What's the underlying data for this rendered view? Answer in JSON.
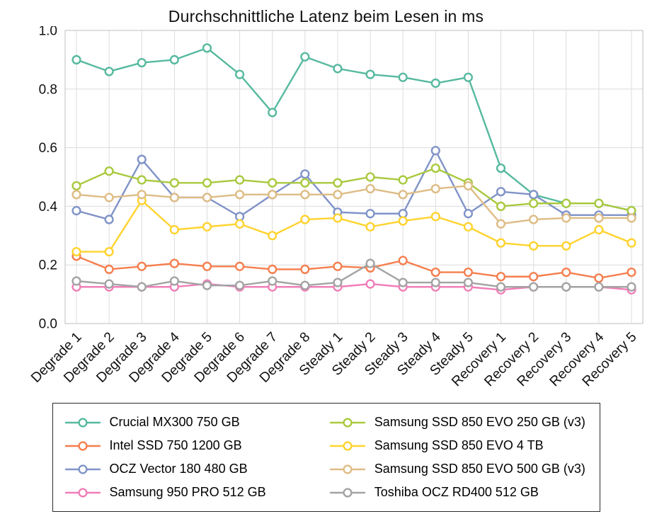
{
  "chart_data": {
    "type": "line",
    "title": "Durchschnittliche Latenz beim Lesen in ms",
    "xlabel": "",
    "ylabel": "",
    "ylim": [
      0.0,
      1.0
    ],
    "yticks": [
      0.0,
      0.2,
      0.4,
      0.6,
      0.8,
      1.0
    ],
    "ytick_labels": [
      "0.0",
      "0.2",
      "0.4",
      "0.6",
      "0.8",
      "1.0"
    ],
    "grid": true,
    "legend_position": "bottom",
    "categories": [
      "Degrade 1",
      "Degrade 2",
      "Degrade 3",
      "Degrade 4",
      "Degrade 5",
      "Degrade 6",
      "Degrade 7",
      "Degrade 8",
      "Steady 1",
      "Steady 2",
      "Steady 3",
      "Steady 4",
      "Steady 5",
      "Recovery 1",
      "Recovery 2",
      "Recovery 3",
      "Recovery 4",
      "Recovery 5"
    ],
    "series": [
      {
        "name": "Crucial MX300 750 GB",
        "color": "#56b99f",
        "values": [
          0.9,
          0.86,
          0.89,
          0.9,
          0.94,
          0.85,
          0.72,
          0.91,
          0.87,
          0.85,
          0.84,
          0.82,
          0.84,
          0.53,
          0.44,
          0.41,
          0.41,
          0.385
        ]
      },
      {
        "name": "Intel SSD 750 1200 GB",
        "color": "#f57e4e",
        "values": [
          0.23,
          0.185,
          0.195,
          0.205,
          0.195,
          0.195,
          0.185,
          0.185,
          0.195,
          0.19,
          0.215,
          0.175,
          0.175,
          0.16,
          0.16,
          0.175,
          0.155,
          0.175
        ]
      },
      {
        "name": "OCZ Vector 180 480 GB",
        "color": "#8093c8",
        "values": [
          0.385,
          0.355,
          0.56,
          0.43,
          0.43,
          0.365,
          0.44,
          0.51,
          0.38,
          0.375,
          0.375,
          0.59,
          0.375,
          0.45,
          0.44,
          0.37,
          0.37,
          0.37
        ]
      },
      {
        "name": "Samsung 950 PRO 512 GB",
        "color": "#f07eb8",
        "values": [
          0.125,
          0.125,
          0.125,
          0.125,
          0.135,
          0.125,
          0.125,
          0.125,
          0.125,
          0.135,
          0.125,
          0.125,
          0.125,
          0.115,
          0.125,
          0.125,
          0.125,
          0.115
        ]
      },
      {
        "name": "Samsung SSD 850 EVO 250 GB (v3)",
        "color": "#a9c93e",
        "values": [
          0.47,
          0.52,
          0.49,
          0.48,
          0.48,
          0.49,
          0.48,
          0.48,
          0.48,
          0.5,
          0.49,
          0.53,
          0.48,
          0.4,
          0.41,
          0.41,
          0.41,
          0.385
        ]
      },
      {
        "name": "Samsung SSD 850 EVO 4 TB",
        "color": "#ffd32e",
        "values": [
          0.245,
          0.245,
          0.42,
          0.32,
          0.33,
          0.34,
          0.3,
          0.355,
          0.36,
          0.33,
          0.35,
          0.365,
          0.33,
          0.275,
          0.265,
          0.265,
          0.32,
          0.275
        ]
      },
      {
        "name": "Samsung SSD 850 EVO 500 GB (v3)",
        "color": "#debc85",
        "values": [
          0.44,
          0.43,
          0.44,
          0.43,
          0.43,
          0.44,
          0.44,
          0.44,
          0.44,
          0.46,
          0.44,
          0.46,
          0.47,
          0.34,
          0.355,
          0.36,
          0.36,
          0.36
        ]
      },
      {
        "name": "Toshiba OCZ RD400 512 GB",
        "color": "#a3a3a3",
        "values": [
          0.145,
          0.135,
          0.125,
          0.145,
          0.13,
          0.13,
          0.145,
          0.13,
          0.14,
          0.205,
          0.14,
          0.14,
          0.14,
          0.125,
          0.125,
          0.125,
          0.125,
          0.125
        ]
      }
    ],
    "style": {
      "grid_color": "#dcdcdc",
      "border_color": "#c8c8c8",
      "marker_fill": "#ffffff"
    }
  }
}
